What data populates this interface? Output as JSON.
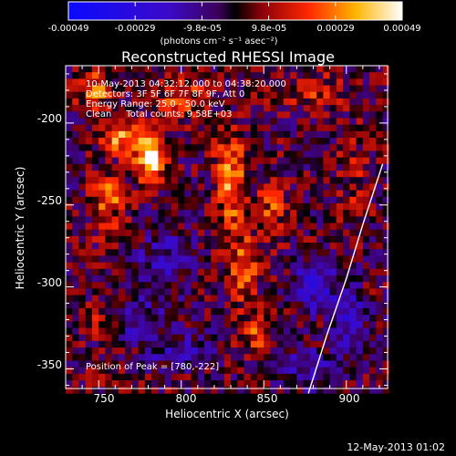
{
  "colorbar": {
    "tick_labels": [
      "-0.00049",
      "-0.00029",
      "-9.8e-05",
      "9.8e-05",
      "0.00029",
      "0.00049"
    ],
    "units_label": "(photons cm⁻² s⁻¹ asec⁻²)",
    "range": [
      -0.00049,
      0.00049
    ],
    "colors": {
      "low": "#1b00ff",
      "mid": "#ff2a00",
      "high": "#ffffff"
    }
  },
  "plot": {
    "title": "Reconstructed RHESSI Image",
    "info_lines": [
      "10-May-2013 04:32:12.000 to 04:38:20.000",
      "Detectors: 3F 5F 6F 7F 8F 9F, Att 0",
      "Energy Range: 25.0 - 50.0 keV",
      "Clean     Total counts: 9.58E+03"
    ],
    "x_axis_label": "Heliocentric X (arcsec)",
    "y_axis_label": "Heliocentric Y (arcsec)",
    "x_ticks": [
      "750",
      "800",
      "850",
      "900"
    ],
    "y_ticks": [
      "-200",
      "-250",
      "-300",
      "-350"
    ],
    "x_range": [
      730,
      925
    ],
    "y_range": [
      -362,
      -165
    ],
    "peak_label": "Position of Peak = [780,-222]"
  },
  "footer": {
    "date": "12-May-2013 01:02"
  }
}
